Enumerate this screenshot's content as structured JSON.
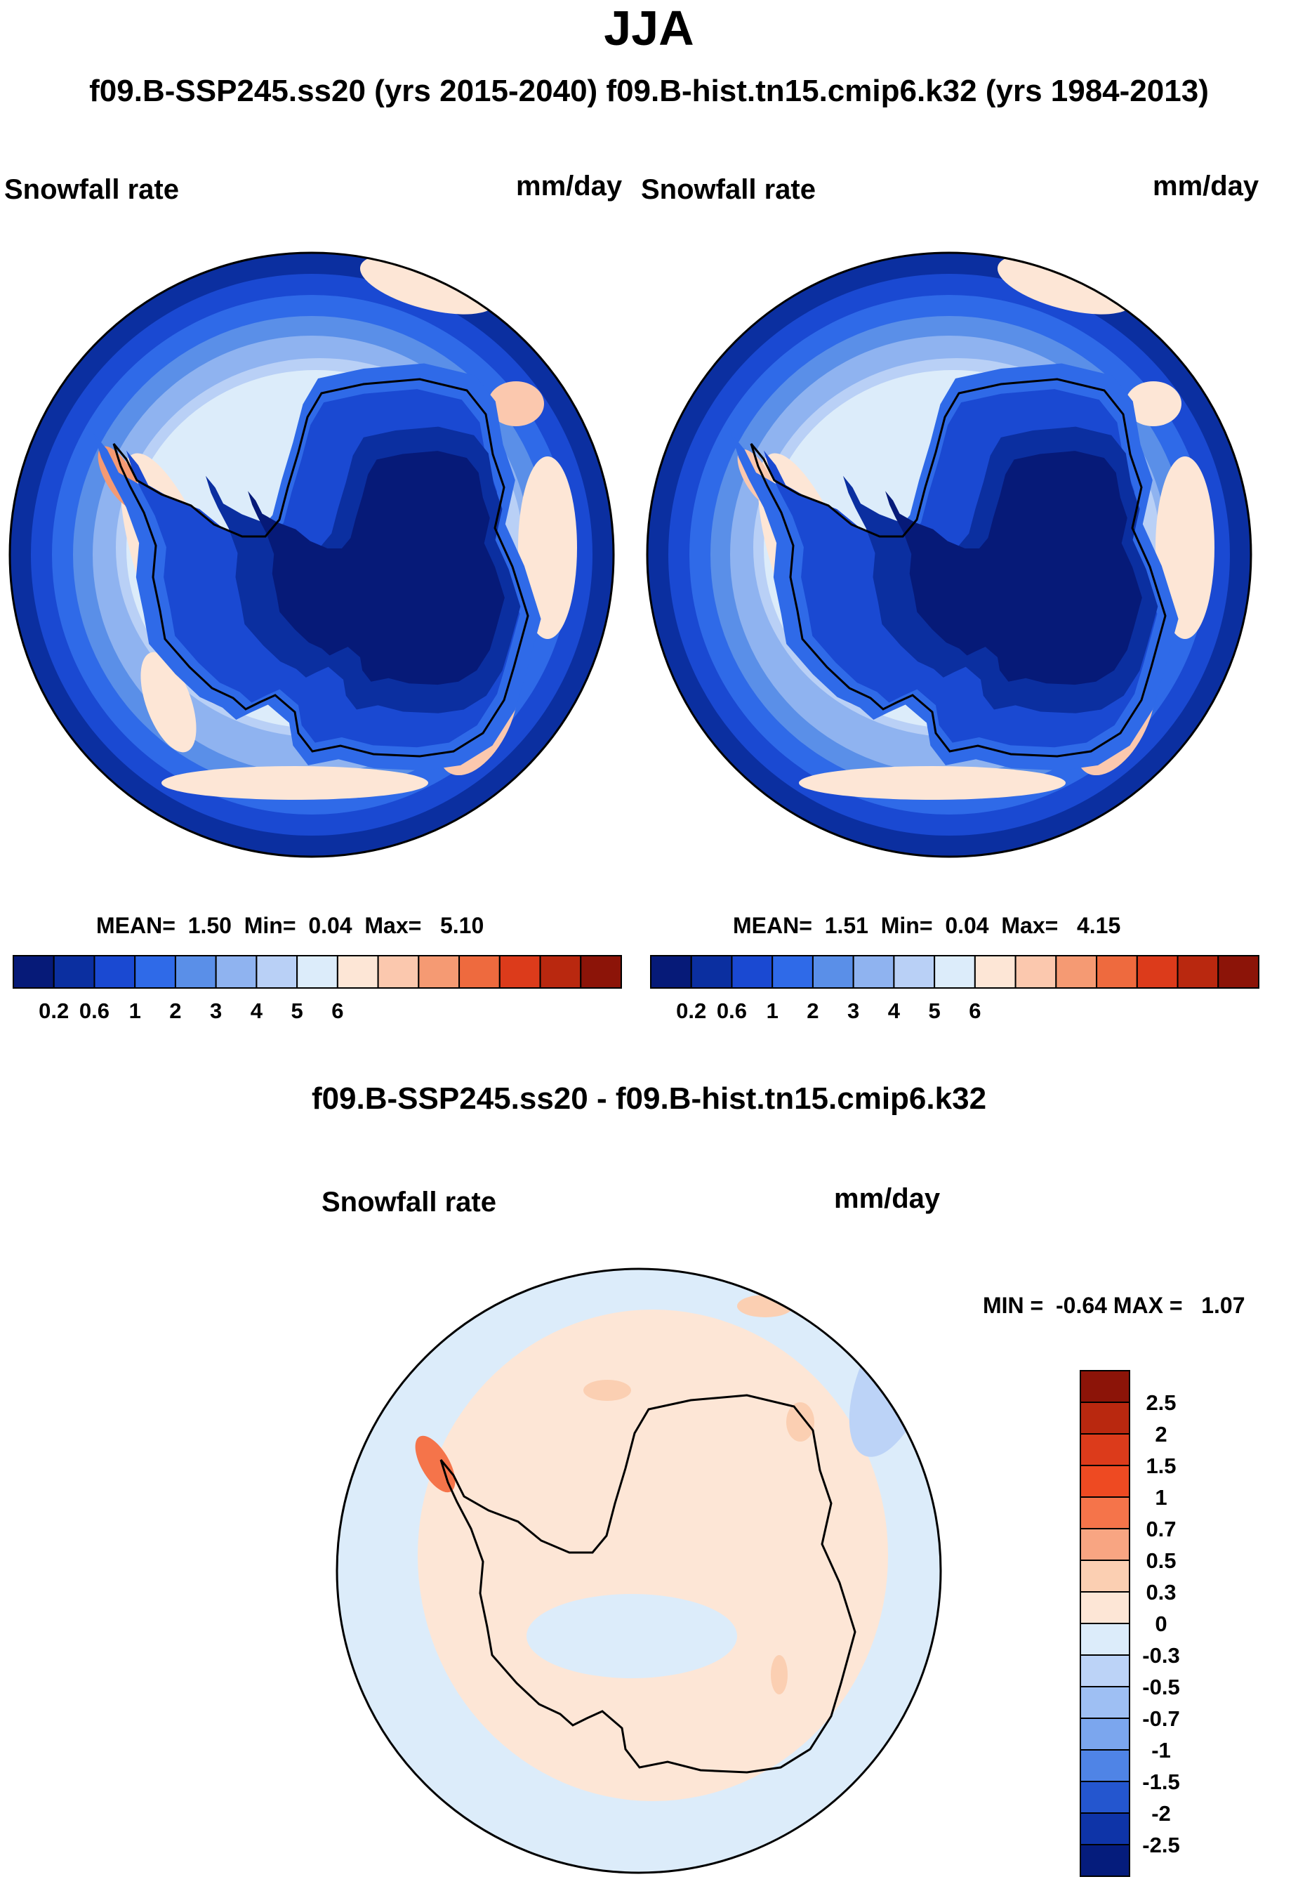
{
  "figure": {
    "title": "JJA",
    "subtitle": "f09.B-SSP245.ss20 (yrs 2015-2040)  f09.B-hist.tn15.cmip6.k32 (yrs 1984-2013)",
    "diff_title": "f09.B-SSP245.ss20 - f09.B-hist.tn15.cmip6.k32"
  },
  "colors": {
    "abs_scale": [
      "#061a78",
      "#0b2fa0",
      "#1a49d2",
      "#2f6ae8",
      "#5a8fe8",
      "#8fb3f0",
      "#b9d0f6",
      "#dcecfa",
      "#fde6d6",
      "#fbc8ae",
      "#f59a73",
      "#ee6a3e",
      "#dc3b1b",
      "#b9280f",
      "#8c1408"
    ],
    "diff_scale": [
      "#8c1408",
      "#b9280f",
      "#dc3b1b",
      "#ee4a22",
      "#f5744a",
      "#f8a582",
      "#fbcfb2",
      "#fde6d6",
      "#dcecfa",
      "#bcd3f7",
      "#9ebff3",
      "#7ba6ee",
      "#4f84e6",
      "#2456cf",
      "#0e34a8",
      "#051c7c"
    ],
    "outline": "#000000"
  },
  "chart_data": [
    {
      "type": "heatmap",
      "panel": "left",
      "variable": "Snowfall rate",
      "units": "mm/day",
      "stats": {
        "mean_label": "MEAN=",
        "mean": "1.50",
        "min_label": "Min=",
        "min": "0.04",
        "max_label": "Max=",
        "max": "5.10"
      },
      "colorbar": {
        "orientation": "horizontal",
        "tick_labels": [
          "0.2",
          "0.6",
          "1",
          "2",
          "3",
          "4",
          "5",
          "6"
        ]
      }
    },
    {
      "type": "heatmap",
      "panel": "right",
      "variable": "Snowfall rate",
      "units": "mm/day",
      "stats": {
        "mean_label": "MEAN=",
        "mean": "1.51",
        "min_label": "Min=",
        "min": "0.04",
        "max_label": "Max=",
        "max": "4.15"
      },
      "colorbar": {
        "orientation": "horizontal",
        "tick_labels": [
          "0.2",
          "0.6",
          "1",
          "2",
          "3",
          "4",
          "5",
          "6"
        ]
      }
    },
    {
      "type": "heatmap",
      "panel": "difference",
      "variable": "Snowfall rate",
      "units": "mm/day",
      "stats": {
        "min_label": "MIN =",
        "min": "-0.64",
        "max_label": "MAX =",
        "max": "1.07"
      },
      "colorbar": {
        "orientation": "vertical",
        "tick_labels": [
          "2.5",
          "2",
          "1.5",
          "1",
          "0.7",
          "0.5",
          "0.3",
          "0",
          "-0.3",
          "-0.5",
          "-0.7",
          "-1",
          "-1.5",
          "-2",
          "-2.5"
        ]
      }
    }
  ]
}
